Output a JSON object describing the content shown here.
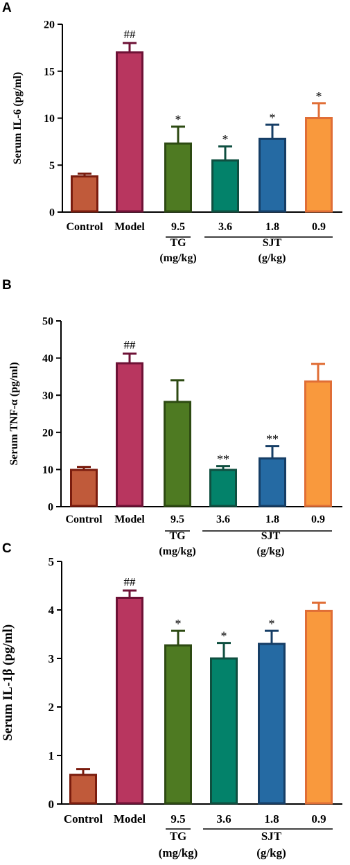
{
  "chart_data": [
    {
      "panel": "A",
      "type": "bar",
      "ylabel": "Serum IL-6 (pg/ml)",
      "ylim": [
        0,
        20
      ],
      "yticks": [
        0,
        5,
        10,
        15,
        20
      ],
      "categories": [
        "Control",
        "Model",
        "9.5",
        "3.6",
        "1.8",
        "0.9"
      ],
      "values": [
        3.8,
        17.0,
        7.3,
        5.5,
        7.8,
        10.0
      ],
      "errors": [
        0.3,
        1.0,
        1.8,
        1.5,
        1.5,
        1.6
      ],
      "significance": [
        "",
        "##",
        "*",
        "*",
        "*",
        "*"
      ],
      "groups": [
        {
          "label": "TG",
          "unit": "(mg/kg)",
          "from": 2,
          "to": 2
        },
        {
          "label": "SJT",
          "unit": "(g/kg)",
          "from": 3,
          "to": 5
        }
      ]
    },
    {
      "panel": "B",
      "type": "bar",
      "ylabel": "Serum TNF-α (pg/ml)",
      "ylim": [
        0,
        50
      ],
      "yticks": [
        0,
        10,
        20,
        30,
        40,
        50
      ],
      "categories": [
        "Control",
        "Model",
        "9.5",
        "3.6",
        "1.8",
        "0.9"
      ],
      "values": [
        9.9,
        38.6,
        28.2,
        9.9,
        13.0,
        33.7
      ],
      "errors": [
        0.8,
        2.6,
        5.8,
        1.0,
        3.3,
        4.7
      ],
      "significance": [
        "",
        "##",
        "",
        "**",
        "**",
        ""
      ],
      "groups": [
        {
          "label": "TG",
          "unit": "(mg/kg)",
          "from": 2,
          "to": 2
        },
        {
          "label": "SJT",
          "unit": "(g/kg)",
          "from": 3,
          "to": 5
        }
      ]
    },
    {
      "panel": "C",
      "type": "bar",
      "ylabel": "Serum IL-1β (pg/ml)",
      "ylim": [
        0,
        5
      ],
      "yticks": [
        0,
        1,
        2,
        3,
        4,
        5
      ],
      "categories": [
        "Control",
        "Model",
        "9.5",
        "3.6",
        "1.8",
        "0.9"
      ],
      "values": [
        0.6,
        4.25,
        3.27,
        3.0,
        3.3,
        3.98
      ],
      "errors": [
        0.12,
        0.15,
        0.3,
        0.32,
        0.27,
        0.17
      ],
      "significance": [
        "",
        "##",
        "*",
        "*",
        "*",
        ""
      ],
      "groups": [
        {
          "label": "TG",
          "unit": "(mg/kg)",
          "from": 2,
          "to": 2
        },
        {
          "label": "SJT",
          "unit": "(g/kg)",
          "from": 3,
          "to": 5
        }
      ]
    }
  ],
  "colors": {
    "fills": [
      "#c05a3a",
      "#b8365f",
      "#4e7a22",
      "#03826a",
      "#256aa3",
      "#f9993d"
    ],
    "strokes": [
      "#7a1c0e",
      "#6e1236",
      "#2d4a12",
      "#0f4f40",
      "#163e66",
      "#e06e36"
    ],
    "error_bars": [
      "#7a1c0e",
      "#6e1236",
      "#2d4a12",
      "#0f4f40",
      "#163e66",
      "#e06e36"
    ]
  }
}
